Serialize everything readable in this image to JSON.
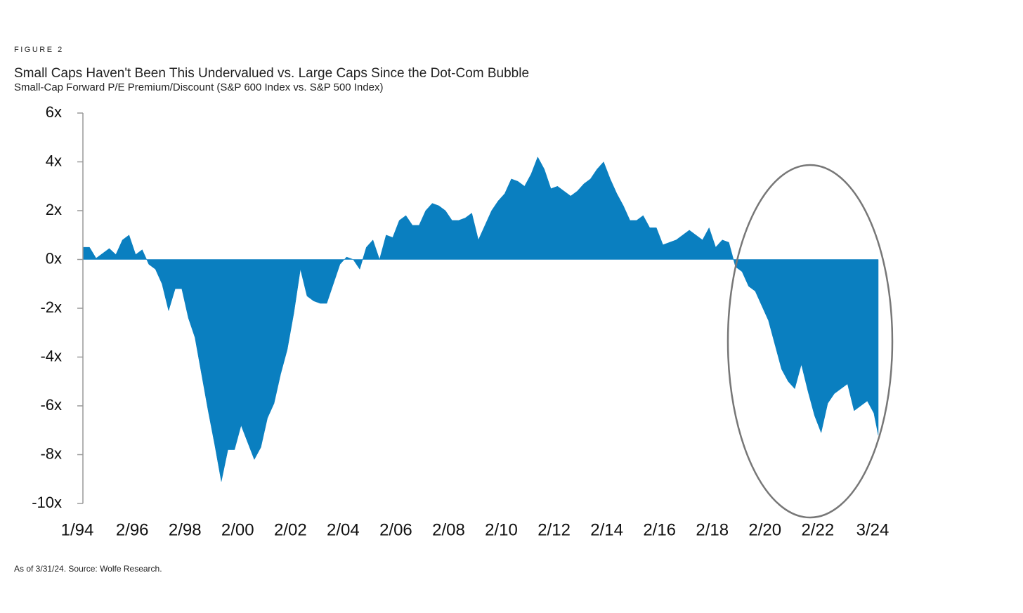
{
  "chart_data": {
    "type": "area",
    "figure_label": "FIGURE 2",
    "title": "Small Caps Haven't Been This Undervalued vs. Large Caps Since the Dot-Com Bubble",
    "subtitle": "Small-Cap Forward P/E Premium/Discount (S&P 600 Index vs. S&P 500 Index)",
    "note": "As of 3/31/24. Source: Wolfe Research.",
    "color": "#0a7fc0",
    "x": [
      "1/94",
      "4/94",
      "7/94",
      "10/94",
      "1/95",
      "4/95",
      "7/95",
      "10/95",
      "1/96",
      "4/96",
      "7/96",
      "10/96",
      "1/97",
      "4/97",
      "7/97",
      "10/97",
      "1/98",
      "4/98",
      "7/98",
      "10/98",
      "1/99",
      "4/99",
      "7/99",
      "10/99",
      "1/00",
      "4/00",
      "7/00",
      "10/00",
      "1/01",
      "4/01",
      "7/01",
      "10/01",
      "1/02",
      "4/02",
      "7/02",
      "10/02",
      "1/03",
      "4/03",
      "7/03",
      "10/03",
      "1/04",
      "4/04",
      "7/04",
      "10/04",
      "1/05",
      "4/05",
      "7/05",
      "10/05",
      "1/06",
      "4/06",
      "7/06",
      "10/06",
      "1/07",
      "4/07",
      "7/07",
      "10/07",
      "1/08",
      "4/08",
      "7/08",
      "10/08",
      "1/09",
      "4/09",
      "7/09",
      "10/09",
      "1/10",
      "4/10",
      "7/10",
      "10/10",
      "1/11",
      "4/11",
      "7/11",
      "10/11",
      "1/12",
      "4/12",
      "7/12",
      "10/12",
      "1/13",
      "4/13",
      "7/13",
      "10/13",
      "1/14",
      "4/14",
      "7/14",
      "10/14",
      "1/15",
      "4/15",
      "7/15",
      "10/15",
      "1/16",
      "4/16",
      "7/16",
      "10/16",
      "1/17",
      "4/17",
      "7/17",
      "10/17",
      "1/18",
      "4/18",
      "7/18",
      "10/18",
      "1/19",
      "4/19",
      "7/19",
      "10/19",
      "1/20",
      "4/20",
      "7/20",
      "10/20",
      "1/21",
      "4/21",
      "7/21",
      "10/21",
      "1/22",
      "4/22",
      "7/22",
      "10/22",
      "1/23",
      "4/23",
      "7/23",
      "10/23",
      "1/24",
      "3/24"
    ],
    "values": [
      0.5,
      0.5,
      0.05,
      0.25,
      0.45,
      0.2,
      0.8,
      1.0,
      0.2,
      0.4,
      -0.2,
      -0.4,
      -1.0,
      -2.1,
      -1.2,
      -1.2,
      -2.4,
      -3.2,
      -4.7,
      -6.2,
      -7.6,
      -9.1,
      -7.8,
      -7.8,
      -6.8,
      -7.5,
      -8.2,
      -7.7,
      -6.5,
      -5.9,
      -4.7,
      -3.7,
      -2.2,
      -0.4,
      -1.5,
      -1.7,
      -1.8,
      -1.8,
      -1.0,
      -0.2,
      0.1,
      0.0,
      -0.4,
      0.5,
      0.8,
      0.0,
      1.0,
      0.9,
      1.6,
      1.8,
      1.4,
      1.4,
      2.0,
      2.3,
      2.2,
      2.0,
      1.6,
      1.6,
      1.7,
      1.9,
      0.8,
      1.4,
      2.0,
      2.4,
      2.7,
      3.3,
      3.2,
      3.0,
      3.5,
      4.2,
      3.7,
      2.9,
      3.0,
      2.8,
      2.6,
      2.8,
      3.1,
      3.3,
      3.7,
      4.0,
      3.3,
      2.7,
      2.2,
      1.6,
      1.6,
      1.8,
      1.3,
      1.3,
      0.6,
      0.7,
      0.8,
      1.0,
      1.2,
      1.0,
      0.8,
      1.3,
      0.5,
      0.8,
      0.7,
      -0.3,
      -0.5,
      -1.1,
      -1.3,
      -1.9,
      -2.5,
      -3.5,
      -4.5,
      -5.0,
      -5.3,
      -4.3,
      -5.4,
      -6.4,
      -7.1,
      -5.9,
      -5.5,
      -5.3,
      -5.1,
      -6.2,
      -6.0,
      -5.8,
      -6.3,
      -7.2
    ],
    "xlim": [
      "1/94",
      "3/24"
    ],
    "xticks": [
      "1/94",
      "2/96",
      "2/98",
      "2/00",
      "2/02",
      "2/04",
      "2/06",
      "2/08",
      "2/10",
      "2/12",
      "2/14",
      "2/16",
      "2/18",
      "2/20",
      "2/22",
      "3/24"
    ],
    "ylim": [
      -10,
      6
    ],
    "yticks": [
      {
        "value": -10,
        "label": "-10x"
      },
      {
        "value": -8,
        "label": "-8x"
      },
      {
        "value": -6,
        "label": "-6x"
      },
      {
        "value": -4,
        "label": "-4x"
      },
      {
        "value": -2,
        "label": "-2x"
      },
      {
        "value": 0,
        "label": "0x"
      },
      {
        "value": 2,
        "label": "2x"
      },
      {
        "value": 4,
        "label": "4x"
      },
      {
        "value": 6,
        "label": "6x"
      }
    ]
  }
}
